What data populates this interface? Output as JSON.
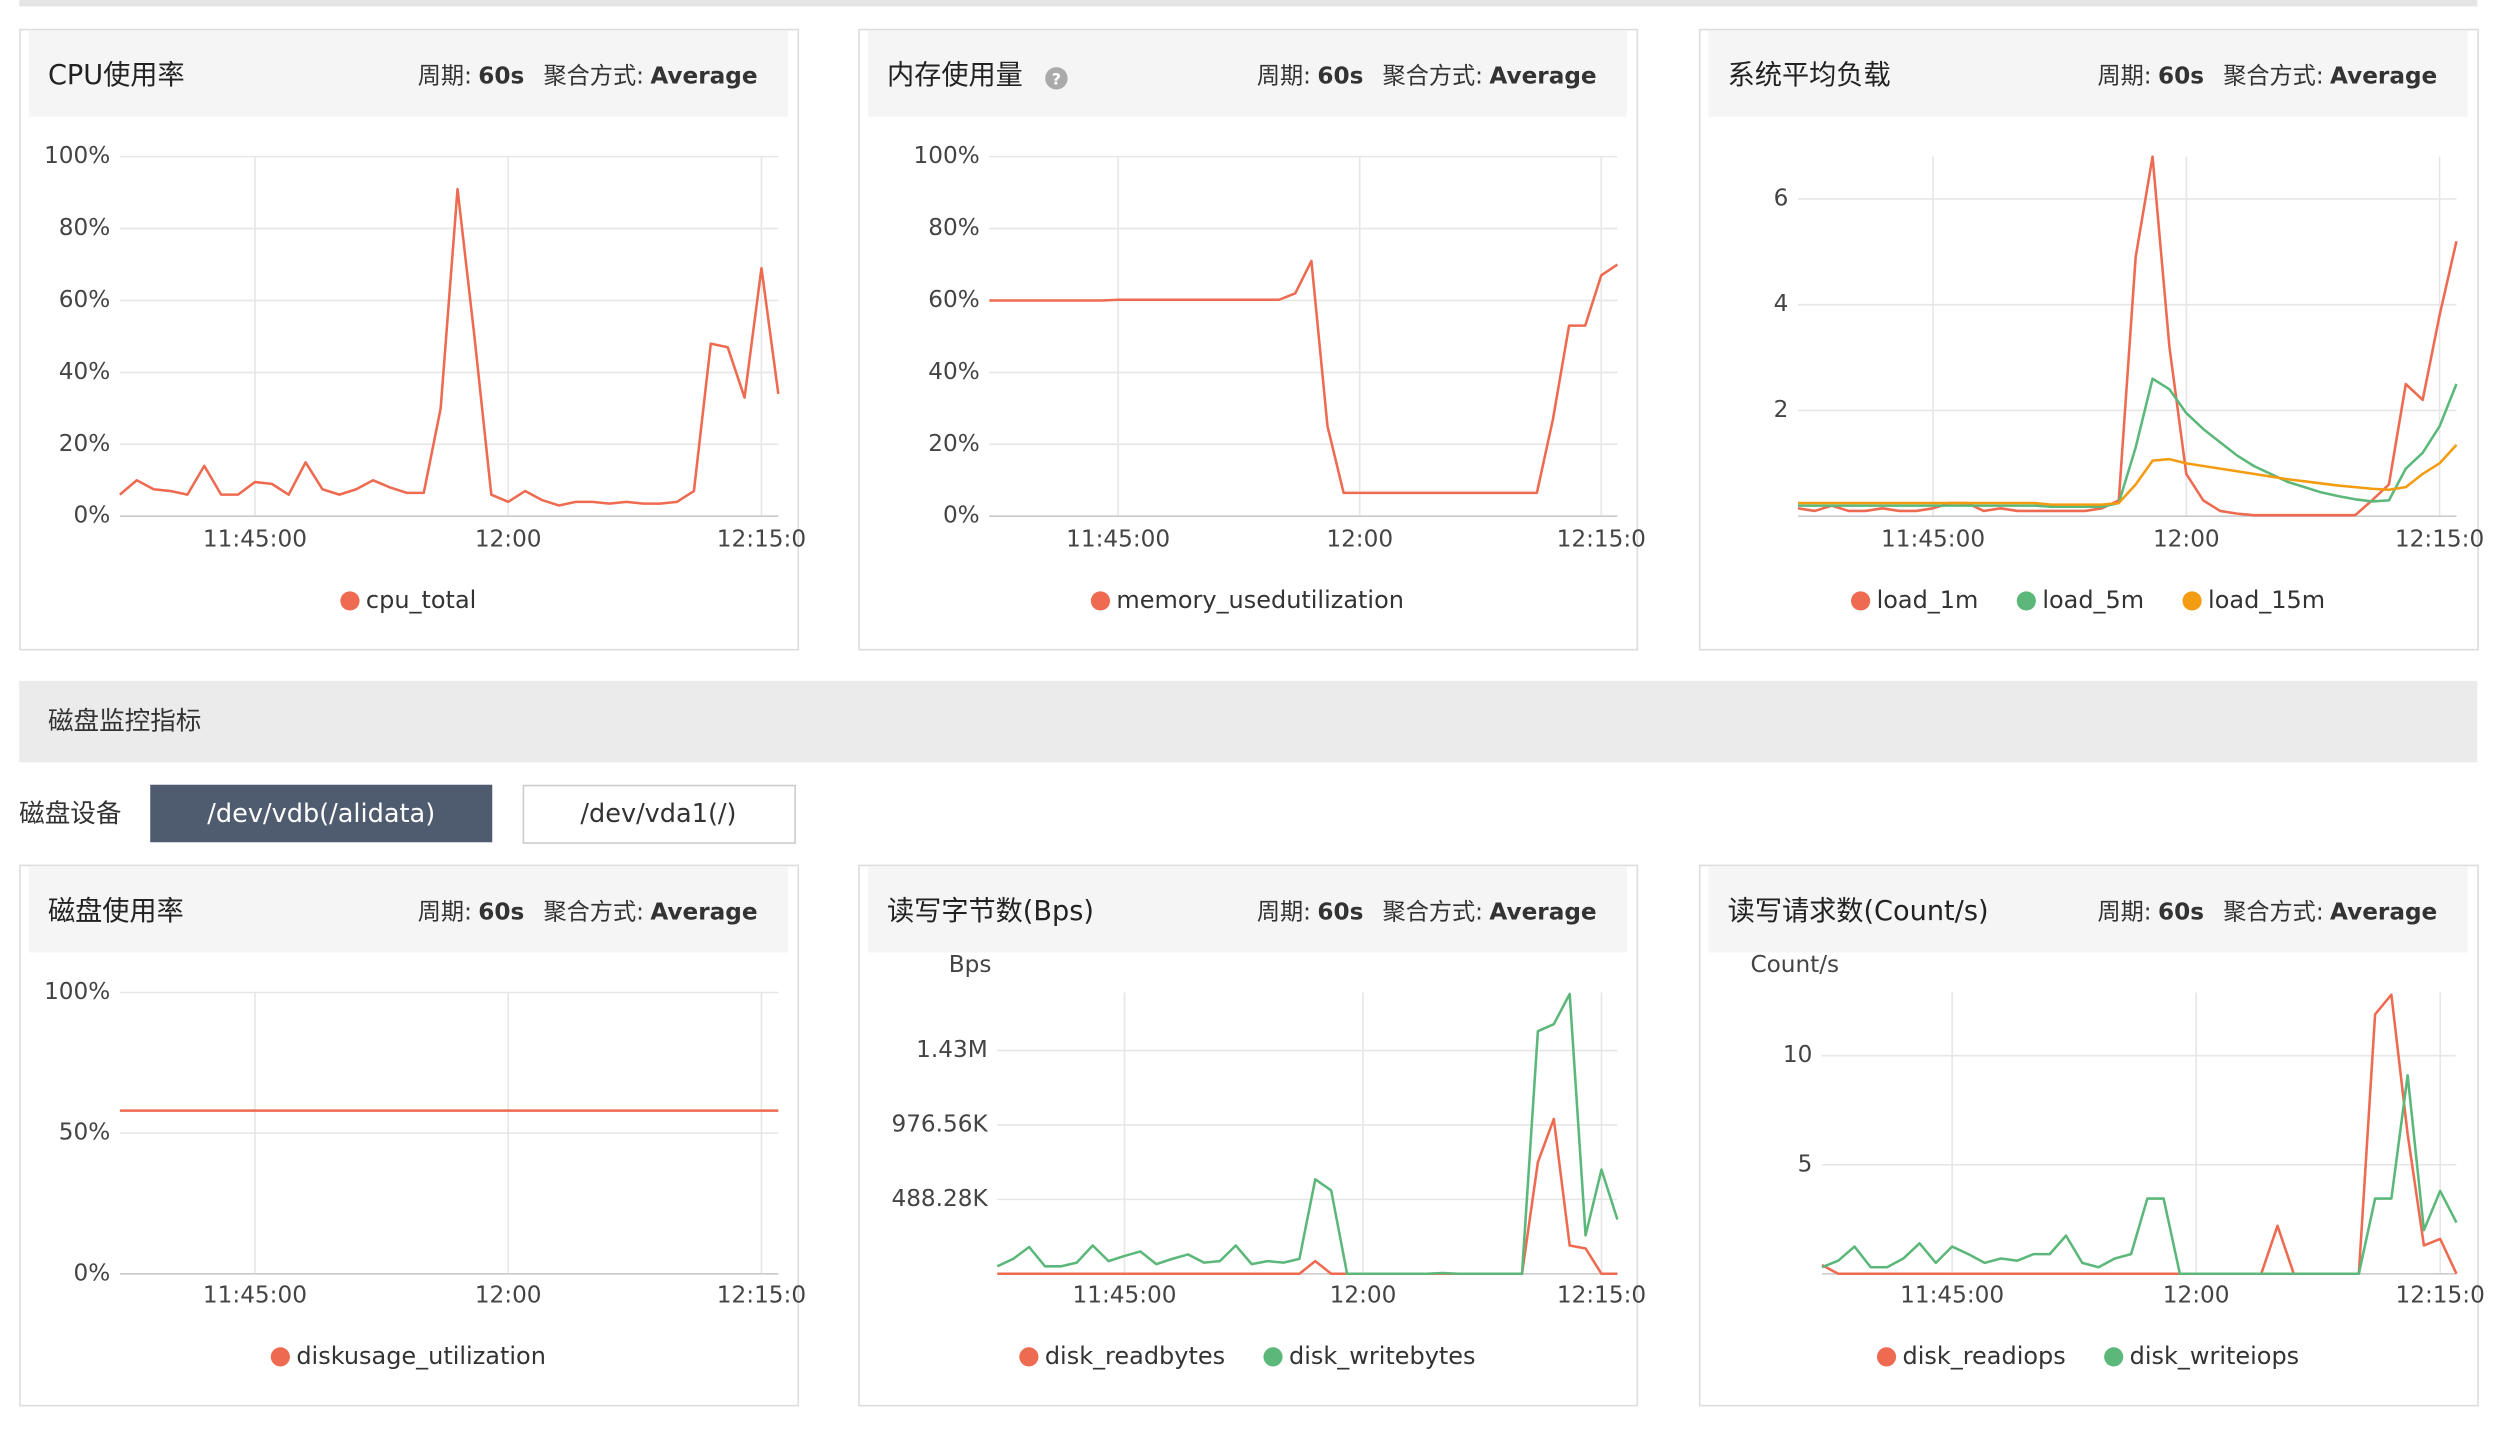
{
  "disk_section": {
    "title": "磁盘监控指标",
    "device_label": "磁盘设备",
    "devices": [
      "/dev/vdb(/alidata)",
      "/dev/vda1(/)"
    ]
  },
  "chart_data": [
    {
      "type": "line",
      "title": "CPU使用率",
      "header": {
        "period_label": "周期:",
        "period": "60s",
        "aggregation_label": "聚合方式:",
        "aggregation": "Average"
      },
      "x": [
        "11:37:00",
        "11:38:00",
        "11:39:00",
        "11:40:00",
        "11:41:00",
        "11:42:00",
        "11:43:00",
        "11:44:00",
        "11:45:00",
        "11:46:00",
        "11:47:00",
        "11:48:00",
        "11:49:00",
        "11:50:00",
        "11:51:00",
        "11:52:00",
        "11:53:00",
        "11:54:00",
        "11:55:00",
        "11:56:00",
        "11:57:00",
        "11:58:00",
        "11:59:00",
        "12:00:00",
        "12:01:00",
        "12:02:00",
        "12:03:00",
        "12:04:00",
        "12:05:00",
        "12:06:00",
        "12:07:00",
        "12:08:00",
        "12:09:00",
        "12:10:00",
        "12:11:00",
        "12:12:00",
        "12:13:00",
        "12:14:00",
        "12:15:00",
        "12:16:00"
      ],
      "xlim": [
        "11:37:00",
        "12:16:00"
      ],
      "xticks": [
        "11:45:00",
        {
          "value": "12:00:00",
          "label": "12:00"
        },
        {
          "value": "12:15:00",
          "label": "12:15:0"
        }
      ],
      "ylim": [
        0,
        100
      ],
      "yticks": [
        {
          "value": 0,
          "label": "0%"
        },
        {
          "value": 20,
          "label": "20%"
        },
        {
          "value": 40,
          "label": "40%"
        },
        {
          "value": 60,
          "label": "60%"
        },
        {
          "value": 80,
          "label": "80%"
        },
        {
          "value": 100,
          "label": "100%"
        }
      ],
      "grid": true,
      "series": [
        {
          "name": "cpu_total",
          "color": "#ee6a50",
          "values": [
            6,
            10,
            7.5,
            7,
            6,
            14,
            6,
            6,
            9.5,
            9,
            6,
            15,
            7.5,
            6,
            7.5,
            10,
            8,
            6.5,
            6.5,
            30,
            91,
            50,
            6,
            4,
            7,
            4.5,
            3,
            4,
            4,
            3.5,
            4,
            3.5,
            3.5,
            4,
            7,
            48,
            47,
            33,
            69,
            34
          ]
        }
      ]
    },
    {
      "type": "line",
      "title": "内存使用量",
      "header": {
        "period_label": "周期:",
        "period": "60s",
        "aggregation_label": "聚合方式:",
        "aggregation": "Average"
      },
      "x": [
        "11:37:00",
        "11:38:00",
        "11:39:00",
        "11:40:00",
        "11:41:00",
        "11:42:00",
        "11:43:00",
        "11:44:00",
        "11:45:00",
        "11:46:00",
        "11:47:00",
        "11:48:00",
        "11:49:00",
        "11:50:00",
        "11:51:00",
        "11:52:00",
        "11:53:00",
        "11:54:00",
        "11:55:00",
        "11:56:00",
        "11:57:00",
        "11:58:00",
        "11:59:00",
        "12:00:00",
        "12:01:00",
        "12:02:00",
        "12:03:00",
        "12:04:00",
        "12:05:00",
        "12:06:00",
        "12:07:00",
        "12:08:00",
        "12:09:00",
        "12:10:00",
        "12:11:00",
        "12:12:00",
        "12:13:00",
        "12:14:00",
        "12:15:00",
        "12:16:00"
      ],
      "xlim": [
        "11:37:00",
        "12:16:00"
      ],
      "xticks": [
        "11:45:00",
        {
          "value": "12:00:00",
          "label": "12:00"
        },
        {
          "value": "12:15:00",
          "label": "12:15:0"
        }
      ],
      "ylim": [
        0,
        100
      ],
      "yticks": [
        {
          "value": 0,
          "label": "0%"
        },
        {
          "value": 20,
          "label": "20%"
        },
        {
          "value": 40,
          "label": "40%"
        },
        {
          "value": 60,
          "label": "60%"
        },
        {
          "value": 80,
          "label": "80%"
        },
        {
          "value": 100,
          "label": "100%"
        }
      ],
      "grid": true,
      "series": [
        {
          "name": "memory_usedutilization",
          "color": "#ee6a50",
          "values": [
            60,
            60,
            60,
            60,
            60,
            60,
            60,
            60,
            60.2,
            60.2,
            60.2,
            60.2,
            60.2,
            60.2,
            60.2,
            60.2,
            60.2,
            60.2,
            60.2,
            62,
            71,
            25,
            6.5,
            6.5,
            6.5,
            6.5,
            6.5,
            6.5,
            6.5,
            6.5,
            6.5,
            6.5,
            6.5,
            6.5,
            6.5,
            27,
            53,
            53,
            67,
            70
          ]
        }
      ]
    },
    {
      "type": "line",
      "title": "系统平均负载",
      "header": {
        "period_label": "周期:",
        "period": "60s",
        "aggregation_label": "聚合方式:",
        "aggregation": "Average"
      },
      "x": [
        "11:37:00",
        "11:38:00",
        "11:39:00",
        "11:40:00",
        "11:41:00",
        "11:42:00",
        "11:43:00",
        "11:44:00",
        "11:45:00",
        "11:46:00",
        "11:47:00",
        "11:48:00",
        "11:49:00",
        "11:50:00",
        "11:51:00",
        "11:52:00",
        "11:53:00",
        "11:54:00",
        "11:55:00",
        "11:56:00",
        "11:57:00",
        "11:58:00",
        "11:59:00",
        "12:00:00",
        "12:01:00",
        "12:02:00",
        "12:03:00",
        "12:04:00",
        "12:05:00",
        "12:06:00",
        "12:07:00",
        "12:08:00",
        "12:09:00",
        "12:10:00",
        "12:11:00",
        "12:12:00",
        "12:13:00",
        "12:14:00",
        "12:15:00",
        "12:16:00"
      ],
      "xlim": [
        "11:37:00",
        "12:16:00"
      ],
      "xticks": [
        "11:45:00",
        {
          "value": "12:00:00",
          "label": "12:00"
        },
        {
          "value": "12:15:00",
          "label": "12:15:0"
        }
      ],
      "ylim": [
        0,
        6.8
      ],
      "yticks": [
        2,
        4,
        6
      ],
      "grid": true,
      "series": [
        {
          "name": "load_1m",
          "color": "#ee6a50",
          "values": [
            0.15,
            0.1,
            0.2,
            0.1,
            0.1,
            0.15,
            0.1,
            0.1,
            0.15,
            0.25,
            0.25,
            0.1,
            0.15,
            0.1,
            0.1,
            0.1,
            0.1,
            0.1,
            0.15,
            0.3,
            4.9,
            6.8,
            3.2,
            0.8,
            0.3,
            0.1,
            0.05,
            0.02,
            0.02,
            0.02,
            0.02,
            0.02,
            0.02,
            0.02,
            0.3,
            0.6,
            2.5,
            2.2,
            3.8,
            5.2
          ]
        },
        {
          "name": "load_5m",
          "color": "#5cb87a",
          "values": [
            0.2,
            0.2,
            0.2,
            0.2,
            0.2,
            0.2,
            0.2,
            0.2,
            0.2,
            0.2,
            0.2,
            0.2,
            0.2,
            0.2,
            0.2,
            0.18,
            0.18,
            0.18,
            0.18,
            0.25,
            1.3,
            2.6,
            2.4,
            1.95,
            1.65,
            1.4,
            1.15,
            0.95,
            0.8,
            0.65,
            0.55,
            0.45,
            0.38,
            0.32,
            0.28,
            0.3,
            0.9,
            1.2,
            1.7,
            2.5
          ]
        },
        {
          "name": "load_15m",
          "color": "#f39c12",
          "values": [
            0.25,
            0.25,
            0.25,
            0.25,
            0.25,
            0.25,
            0.25,
            0.25,
            0.25,
            0.25,
            0.25,
            0.25,
            0.25,
            0.25,
            0.25,
            0.22,
            0.22,
            0.22,
            0.22,
            0.25,
            0.6,
            1.05,
            1.08,
            1.0,
            0.95,
            0.9,
            0.85,
            0.8,
            0.75,
            0.7,
            0.66,
            0.62,
            0.58,
            0.55,
            0.52,
            0.5,
            0.55,
            0.8,
            1.0,
            1.35
          ]
        }
      ]
    },
    {
      "type": "line",
      "title": "磁盘使用率",
      "header": {
        "period_label": "周期:",
        "period": "60s",
        "aggregation_label": "聚合方式:",
        "aggregation": "Average"
      },
      "x": [
        "11:37:00",
        "11:38:00",
        "11:39:00",
        "11:40:00",
        "11:41:00",
        "11:42:00",
        "11:43:00",
        "11:44:00",
        "11:45:00",
        "11:46:00",
        "11:47:00",
        "11:48:00",
        "11:49:00",
        "11:50:00",
        "11:51:00",
        "11:52:00",
        "11:53:00",
        "11:54:00",
        "11:55:00",
        "11:56:00",
        "11:57:00",
        "11:58:00",
        "11:59:00",
        "12:00:00",
        "12:01:00",
        "12:02:00",
        "12:03:00",
        "12:04:00",
        "12:05:00",
        "12:06:00",
        "12:07:00",
        "12:08:00",
        "12:09:00",
        "12:10:00",
        "12:11:00",
        "12:12:00",
        "12:13:00",
        "12:14:00",
        "12:15:00",
        "12:16:00"
      ],
      "xlim": [
        "11:37:00",
        "12:16:00"
      ],
      "xticks": [
        "11:45:00",
        {
          "value": "12:00:00",
          "label": "12:00"
        },
        {
          "value": "12:15:00",
          "label": "12:15:0"
        }
      ],
      "ylim": [
        0,
        100
      ],
      "yticks": [
        {
          "value": 0,
          "label": "0%"
        },
        {
          "value": 50,
          "label": "50%"
        },
        {
          "value": 100,
          "label": "100%"
        }
      ],
      "grid": true,
      "series": [
        {
          "name": "diskusage_utilization",
          "color": "#ee6a50",
          "values": [
            58,
            58,
            58,
            58,
            58,
            58,
            58,
            58,
            58,
            58,
            58,
            58,
            58,
            58,
            58,
            58,
            58,
            58,
            58,
            58,
            58,
            58,
            58,
            58,
            58,
            58,
            58,
            58,
            58,
            58,
            58,
            58,
            58,
            58,
            58,
            58,
            58,
            58,
            58,
            58
          ]
        }
      ]
    },
    {
      "type": "line",
      "title": "读写字节数(Bps)",
      "y_label": "Bps",
      "header": {
        "period_label": "周期:",
        "period": "60s",
        "aggregation_label": "聚合方式:",
        "aggregation": "Average"
      },
      "x": [
        "11:37:00",
        "11:38:00",
        "11:39:00",
        "11:40:00",
        "11:41:00",
        "11:42:00",
        "11:43:00",
        "11:44:00",
        "11:45:00",
        "11:46:00",
        "11:47:00",
        "11:48:00",
        "11:49:00",
        "11:50:00",
        "11:51:00",
        "11:52:00",
        "11:53:00",
        "11:54:00",
        "11:55:00",
        "11:56:00",
        "11:57:00",
        "11:58:00",
        "11:59:00",
        "12:00:00",
        "12:01:00",
        "12:02:00",
        "12:03:00",
        "12:04:00",
        "12:05:00",
        "12:06:00",
        "12:07:00",
        "12:08:00",
        "12:09:00",
        "12:10:00",
        "12:11:00",
        "12:12:00",
        "12:13:00",
        "12:14:00",
        "12:15:00",
        "12:16:00"
      ],
      "xlim": [
        "11:37:00",
        "12:16:00"
      ],
      "xticks": [
        "11:45:00",
        {
          "value": "12:00:00",
          "label": "12:00"
        },
        {
          "value": "12:15:00",
          "label": "12:15:0"
        }
      ],
      "ylim": [
        0,
        1890000
      ],
      "yticks": [
        {
          "value": 500000,
          "label": "488.28K"
        },
        {
          "value": 1000000,
          "label": "976.56K"
        },
        {
          "value": 1500000,
          "label": "1.43M"
        }
      ],
      "grid": true,
      "series": [
        {
          "name": "disk_readbytes",
          "color": "#ee6a50",
          "values": [
            0,
            0,
            0,
            0,
            0,
            0,
            0,
            0,
            0,
            0,
            0,
            0,
            0,
            0,
            0,
            0,
            0,
            0,
            0,
            0,
            85000,
            0,
            0,
            0,
            0,
            0,
            0,
            0,
            0,
            0,
            0,
            0,
            0,
            0,
            750000,
            1040000,
            190000,
            170000,
            0,
            0
          ]
        },
        {
          "name": "disk_writebytes",
          "color": "#5cb87a",
          "values": [
            50000,
            100000,
            180000,
            50000,
            50000,
            75000,
            190000,
            85000,
            120000,
            150000,
            65000,
            100000,
            130000,
            75000,
            85000,
            190000,
            65000,
            85000,
            75000,
            100000,
            635000,
            560000,
            0,
            0,
            0,
            0,
            0,
            0,
            5000,
            0,
            0,
            0,
            0,
            0,
            1630000,
            1677000,
            1880000,
            258000,
            700000,
            365000
          ]
        }
      ]
    },
    {
      "type": "line",
      "title": "读写请求数(Count/s)",
      "y_label": "Count/s",
      "header": {
        "period_label": "周期:",
        "period": "60s",
        "aggregation_label": "聚合方式:",
        "aggregation": "Average"
      },
      "x": [
        "11:37:00",
        "11:38:00",
        "11:39:00",
        "11:40:00",
        "11:41:00",
        "11:42:00",
        "11:43:00",
        "11:44:00",
        "11:45:00",
        "11:46:00",
        "11:47:00",
        "11:48:00",
        "11:49:00",
        "11:50:00",
        "11:51:00",
        "11:52:00",
        "11:53:00",
        "11:54:00",
        "11:55:00",
        "11:56:00",
        "11:57:00",
        "11:58:00",
        "11:59:00",
        "12:00:00",
        "12:01:00",
        "12:02:00",
        "12:03:00",
        "12:04:00",
        "12:05:00",
        "12:06:00",
        "12:07:00",
        "12:08:00",
        "12:09:00",
        "12:10:00",
        "12:11:00",
        "12:12:00",
        "12:13:00",
        "12:14:00",
        "12:15:00",
        "12:16:00"
      ],
      "xlim": [
        "11:37:00",
        "12:16:00"
      ],
      "xticks": [
        "11:45:00",
        {
          "value": "12:00:00",
          "label": "12:00"
        },
        {
          "value": "12:15:00",
          "label": "12:15:0"
        }
      ],
      "ylim": [
        0,
        12.9
      ],
      "yticks": [
        5,
        10
      ],
      "grid": true,
      "series": [
        {
          "name": "disk_readiops",
          "color": "#ee6a50",
          "values": [
            0.4,
            0,
            0,
            0,
            0,
            0,
            0,
            0,
            0,
            0,
            0,
            0,
            0,
            0,
            0,
            0,
            0,
            0,
            0,
            0,
            0,
            0,
            0,
            0,
            0,
            0,
            0,
            0,
            2.2,
            0,
            0,
            0,
            0,
            0,
            11.9,
            12.8,
            6.4,
            1.3,
            1.6,
            0
          ]
        },
        {
          "name": "disk_writeiops",
          "color": "#5cb87a",
          "values": [
            0.3,
            0.6,
            1.25,
            0.3,
            0.3,
            0.7,
            1.4,
            0.5,
            1.25,
            0.9,
            0.5,
            0.7,
            0.6,
            0.9,
            0.9,
            1.75,
            0.5,
            0.3,
            0.7,
            0.9,
            3.45,
            3.45,
            0,
            0,
            0,
            0,
            0,
            0,
            0,
            0,
            0,
            0,
            0,
            0,
            3.45,
            3.45,
            9.1,
            2.0,
            3.8,
            2.35
          ]
        }
      ]
    }
  ]
}
